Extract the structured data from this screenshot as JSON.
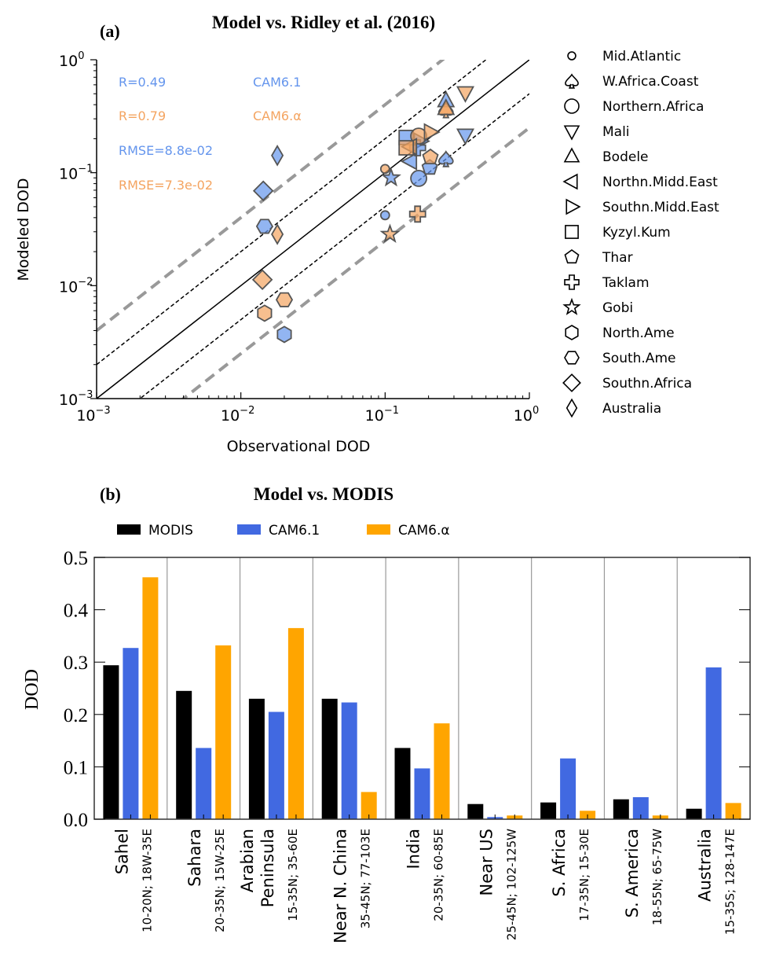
{
  "chart_data": [
    {
      "type": "scatter",
      "panel_label": "(a)",
      "title": "Model vs. Ridley et al. (2016)",
      "xlabel": "Observational DOD",
      "ylabel": "Modeled DOD",
      "xscale": "log",
      "yscale": "log",
      "xlim": [
        0.001,
        1
      ],
      "ylim": [
        0.001,
        1
      ],
      "x_ticks": [
        {
          "base": "10",
          "exp": "−3"
        },
        {
          "base": "10",
          "exp": "−2"
        },
        {
          "base": "10",
          "exp": "−1"
        },
        {
          "base": "10",
          "exp": "0"
        }
      ],
      "y_ticks": [
        {
          "base": "10",
          "exp": "−3"
        },
        {
          "base": "10",
          "exp": "−2"
        },
        {
          "base": "10",
          "exp": "−1"
        },
        {
          "base": "10",
          "exp": "0"
        }
      ],
      "reference_lines": [
        {
          "name": "1:1",
          "factor": 1,
          "style": "solid",
          "color": "#000000"
        },
        {
          "name": "factor 2 upper",
          "factor": 2,
          "style": "dashed",
          "color": "#000000"
        },
        {
          "name": "factor 2 lower",
          "factor": 0.5,
          "style": "dashed",
          "color": "#000000"
        },
        {
          "name": "factor 4 upper",
          "factor": 4,
          "style": "dashed-thick",
          "color": "#999999"
        },
        {
          "name": "factor 4 lower",
          "factor": 0.25,
          "style": "dashed-thick",
          "color": "#999999"
        }
      ],
      "stats": [
        {
          "text": "R=0.49",
          "color": "#6495ED"
        },
        {
          "text": "R=0.79",
          "color": "#F4A460"
        },
        {
          "text": "RMSE=8.8e-02",
          "color": "#6495ED"
        },
        {
          "text": "RMSE=7.3e-02",
          "color": "#F4A460"
        }
      ],
      "model_labels": [
        {
          "text": "CAM6.1",
          "color": "#6495ED"
        },
        {
          "text": "CAM6.α",
          "color": "#F4A460"
        }
      ],
      "series": [
        {
          "name": "CAM6.1",
          "color": "#6495ED",
          "points": [
            {
              "site": "Mid.Atlantic",
              "x": 0.1,
              "y": 0.042
            },
            {
              "site": "W.Africa.Coast",
              "x": 0.264,
              "y": 0.133
            },
            {
              "site": "Northern.Africa",
              "x": 0.171,
              "y": 0.089
            },
            {
              "site": "Mali",
              "x": 0.36,
              "y": 0.215
            },
            {
              "site": "Bodele",
              "x": 0.264,
              "y": 0.434
            },
            {
              "site": "Northn.Midd.East",
              "x": 0.15,
              "y": 0.126
            },
            {
              "site": "Southn.Midd.East",
              "x": 0.175,
              "y": 0.19
            },
            {
              "site": "Kyzyl.Kum",
              "x": 0.14,
              "y": 0.205
            },
            {
              "site": "Thar",
              "x": 0.204,
              "y": 0.111
            },
            {
              "site": "Taklam",
              "x": 0.168,
              "y": 0.166
            },
            {
              "site": "Gobi",
              "x": 0.11,
              "y": 0.09
            },
            {
              "site": "North.Ame",
              "x": 0.02,
              "y": 0.0037
            },
            {
              "site": "South.Ame",
              "x": 0.0146,
              "y": 0.0335
            },
            {
              "site": "Southn.Africa",
              "x": 0.0143,
              "y": 0.069
            },
            {
              "site": "Australia",
              "x": 0.0179,
              "y": 0.142
            }
          ]
        },
        {
          "name": "CAM6.α",
          "color": "#F4A460",
          "points": [
            {
              "site": "Mid.Atlantic",
              "x": 0.1,
              "y": 0.108
            },
            {
              "site": "W.Africa.Coast",
              "x": 0.264,
              "y": 0.36
            },
            {
              "site": "Northern.Africa",
              "x": 0.171,
              "y": 0.211
            },
            {
              "site": "Mali",
              "x": 0.36,
              "y": 0.51
            },
            {
              "site": "Bodele",
              "x": 0.264,
              "y": 0.37
            },
            {
              "site": "Northn.Midd.East",
              "x": 0.15,
              "y": 0.17
            },
            {
              "site": "Southn.Midd.East",
              "x": 0.206,
              "y": 0.229
            },
            {
              "site": "Kyzyl.Kum",
              "x": 0.14,
              "y": 0.166
            },
            {
              "site": "Thar",
              "x": 0.206,
              "y": 0.137
            },
            {
              "site": "Taklam",
              "x": 0.168,
              "y": 0.043
            },
            {
              "site": "Gobi",
              "x": 0.108,
              "y": 0.0285
            },
            {
              "site": "North.Ame",
              "x": 0.0146,
              "y": 0.0057
            },
            {
              "site": "South.Ame",
              "x": 0.02,
              "y": 0.0075
            },
            {
              "site": "Southn.Africa",
              "x": 0.0141,
              "y": 0.0113
            },
            {
              "site": "Australia",
              "x": 0.0179,
              "y": 0.0285
            }
          ]
        }
      ],
      "legend": {
        "placement": "right-outside",
        "entries": [
          {
            "label": "Mid.Atlantic",
            "marker": "small-circle"
          },
          {
            "label": "W.Africa.Coast",
            "marker": "spade"
          },
          {
            "label": "Northern.Africa",
            "marker": "circle"
          },
          {
            "label": "Mali",
            "marker": "triangle-down"
          },
          {
            "label": "Bodele",
            "marker": "triangle-up"
          },
          {
            "label": "Northn.Midd.East",
            "marker": "triangle-left"
          },
          {
            "label": "Southn.Midd.East",
            "marker": "triangle-right"
          },
          {
            "label": "Kyzyl.Kum",
            "marker": "square"
          },
          {
            "label": "Thar",
            "marker": "pentagon"
          },
          {
            "label": "Taklam",
            "marker": "plus"
          },
          {
            "label": "Gobi",
            "marker": "star"
          },
          {
            "label": "North.Ame",
            "marker": "hexagon-pointy"
          },
          {
            "label": "South.Ame",
            "marker": "hexagon-flat"
          },
          {
            "label": "Southn.Africa",
            "marker": "diamond"
          },
          {
            "label": "Australia",
            "marker": "thin-diamond"
          }
        ]
      }
    },
    {
      "type": "bar",
      "panel_label": "(b)",
      "title": "Model vs. MODIS",
      "xlabel": "",
      "ylabel": "DOD",
      "ylim": [
        0,
        0.5
      ],
      "y_ticks": [
        "0.0",
        "0.1",
        "0.2",
        "0.3",
        "0.4",
        "0.5"
      ],
      "grid": "vertical separators between groups",
      "legend": {
        "placement": "top",
        "entries": [
          "MODIS",
          "CAM6.1",
          "CAM6.α"
        ]
      },
      "categories": [
        {
          "name": "Sahel",
          "region": "10-20N; 18W-35E"
        },
        {
          "name": "Sahara",
          "region": "20-35N; 15W-25E"
        },
        {
          "name": "Arabian Peninsula",
          "lines": [
            "Arabian",
            "Peninsula"
          ],
          "region": "15-35N; 35-60E"
        },
        {
          "name": "Near N. China",
          "region": "35-45N; 77-103E"
        },
        {
          "name": "India",
          "region": "20-35N; 60-85E"
        },
        {
          "name": "Near US",
          "region": "25-45N; 102-125W"
        },
        {
          "name": "S. Africa",
          "region": "17-35N; 15-30E"
        },
        {
          "name": "S. America",
          "region": "18-55N; 65-75W"
        },
        {
          "name": "Australia",
          "region": "15-35S; 128-147E"
        }
      ],
      "series": [
        {
          "name": "MODIS",
          "color": "#000000",
          "values": [
            0.294,
            0.245,
            0.23,
            0.23,
            0.136,
            0.029,
            0.032,
            0.038,
            0.02
          ]
        },
        {
          "name": "CAM6.1",
          "color": "#4169E1",
          "values": [
            0.327,
            0.136,
            0.205,
            0.223,
            0.097,
            0.004,
            0.116,
            0.042,
            0.29
          ]
        },
        {
          "name": "CAM6.α",
          "color": "#FFA500",
          "values": [
            0.462,
            0.332,
            0.365,
            0.052,
            0.183,
            0.007,
            0.016,
            0.007,
            0.031
          ]
        }
      ]
    }
  ]
}
